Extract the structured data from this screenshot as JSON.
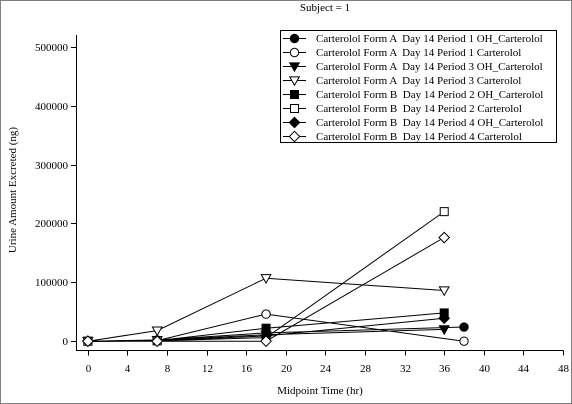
{
  "chart_data": {
    "type": "line",
    "title": "Subject = 1",
    "xlabel": "Midpoint Time (hr)",
    "ylabel": "Urine Amount Excreted (ng)",
    "xlim": [
      -1.2,
      48
    ],
    "ylim": [
      -15000,
      520000
    ],
    "xticks": [
      0,
      4,
      8,
      12,
      16,
      20,
      24,
      28,
      32,
      36,
      40,
      44,
      48
    ],
    "yticks": [
      0,
      100000,
      200000,
      300000,
      400000,
      500000
    ],
    "grid": false,
    "legend_position": "top-right",
    "series": [
      {
        "name": "Carterolol Form A  Day 14 Period 1 OH_Carterolol",
        "marker": "circle",
        "filled": true,
        "x": [
          0,
          7,
          18,
          38
        ],
        "y": [
          0,
          2000,
          14000,
          24000
        ]
      },
      {
        "name": "Carterolol Form A  Day 14 Period 1 Carterolol",
        "marker": "circle",
        "filled": false,
        "x": [
          0,
          7,
          18,
          38
        ],
        "y": [
          0,
          1000,
          46000,
          0
        ]
      },
      {
        "name": "Carterolol Form A  Day 14 Period 3 OH_Carterolol",
        "marker": "triangle-down",
        "filled": true,
        "x": [
          0,
          7,
          18,
          36
        ],
        "y": [
          0,
          1500,
          11000,
          20000
        ]
      },
      {
        "name": "Carterolol Form A  Day 14 Period 3 Carterolol",
        "marker": "triangle-down",
        "filled": false,
        "x": [
          0,
          7,
          18,
          36
        ],
        "y": [
          0,
          18000,
          107000,
          86000
        ]
      },
      {
        "name": "Carterolol Form B  Day 14 Period 2 OH_Carterolol",
        "marker": "square",
        "filled": true,
        "x": [
          0,
          7,
          18,
          36
        ],
        "y": [
          0,
          1000,
          22000,
          48000
        ]
      },
      {
        "name": "Carterolol Form B  Day 14 Period 2 Carterolol",
        "marker": "square",
        "filled": false,
        "x": [
          0,
          7,
          18,
          36
        ],
        "y": [
          0,
          500,
          6000,
          220000
        ]
      },
      {
        "name": "Carterolol Form B  Day 14 Period 4 OH_Carterolol",
        "marker": "diamond",
        "filled": true,
        "x": [
          0,
          7,
          18,
          36
        ],
        "y": [
          0,
          500,
          9000,
          39000
        ]
      },
      {
        "name": "Carterolol Form B  Day 14 Period 4 Carterolol",
        "marker": "diamond",
        "filled": false,
        "x": [
          0,
          7,
          18,
          36
        ],
        "y": [
          0,
          0,
          0,
          176000
        ]
      }
    ]
  }
}
